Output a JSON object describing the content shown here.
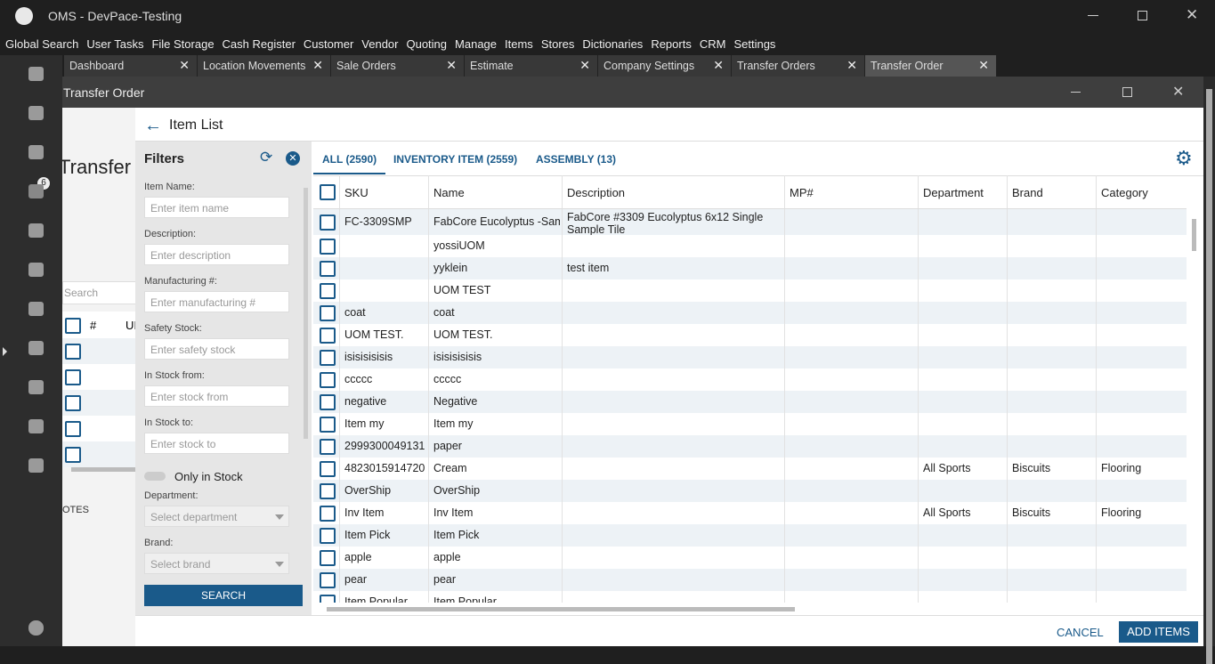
{
  "window": {
    "title": "OMS - DevPace-Testing"
  },
  "menu": [
    "Global Search",
    "User Tasks",
    "File Storage",
    "Cash Register",
    "Customer",
    "Vendor",
    "Quoting",
    "Manage",
    "Items",
    "Stores",
    "Dictionaries",
    "Reports",
    "CRM",
    "Settings"
  ],
  "sidebar": {
    "badge": "6"
  },
  "tabs": [
    "Dashboard",
    "Location Movements",
    "Sale Orders",
    "Estimate",
    "Company Settings",
    "Transfer Orders",
    "Transfer Order"
  ],
  "dialog": {
    "title": "Transfer Order"
  },
  "background": {
    "heading": "Transfer",
    "search": "Search",
    "col_hash": "#",
    "col_u": "UI",
    "notes": "OTES"
  },
  "item_list": {
    "title": "Item List",
    "filters": {
      "title": "Filters",
      "fields": [
        {
          "label": "Item Name:",
          "placeholder": "Enter item name"
        },
        {
          "label": "Description:",
          "placeholder": "Enter description"
        },
        {
          "label": "Manufacturing #:",
          "placeholder": "Enter manufacturing #"
        },
        {
          "label": "Safety Stock:",
          "placeholder": "Enter safety stock"
        },
        {
          "label": "In Stock from:",
          "placeholder": "Enter stock from"
        },
        {
          "label": "In Stock to:",
          "placeholder": "Enter stock to"
        }
      ],
      "toggle": "Only in Stock",
      "selects": [
        {
          "label": "Department:",
          "placeholder": "Select department"
        },
        {
          "label": "Brand:",
          "placeholder": "Select brand"
        }
      ],
      "button": "SEARCH"
    },
    "tabs": [
      "ALL (2590)",
      "INVENTORY ITEM (2559)",
      "ASSEMBLY (13)"
    ],
    "table": {
      "columns": [
        "SKU",
        "Name",
        "Description",
        "MP#",
        "Department",
        "Brand",
        "Category"
      ],
      "rows": [
        {
          "sku": "FC-3309SMP",
          "name": "FabCore Eucolyptus -Sample",
          "description": "FabCore #3309 Eucolyptus 6x12 Single Sample Tile"
        },
        {
          "name": "yossiUOM"
        },
        {
          "name": "yyklein",
          "description": "test item"
        },
        {
          "name": "UOM TEST"
        },
        {
          "sku": "coat",
          "name": "coat"
        },
        {
          "sku": "UOM TEST.",
          "name": "UOM TEST."
        },
        {
          "sku": "isisisisisis",
          "name": "isisisisisis"
        },
        {
          "sku": "ccccc",
          "name": "ccccc"
        },
        {
          "sku": "negative",
          "name": "Negative"
        },
        {
          "sku": "Item my",
          "name": "Item my"
        },
        {
          "sku": "2999300049131",
          "name": "paper"
        },
        {
          "sku": "4823015914720",
          "name": "Cream",
          "department": "All Sports",
          "brand": "Biscuits",
          "category": "Flooring"
        },
        {
          "sku": "OverShip",
          "name": "OverShip"
        },
        {
          "sku": "Inv Item",
          "name": "Inv Item",
          "department": "All Sports",
          "brand": "Biscuits",
          "category": "Flooring"
        },
        {
          "sku": "Item Pick",
          "name": "Item Pick"
        },
        {
          "sku": "apple",
          "name": "apple"
        },
        {
          "sku": "pear",
          "name": "pear"
        },
        {
          "sku": "Item Popular",
          "name": "Item Popular"
        }
      ]
    }
  },
  "footer": {
    "cancel": "CANCEL",
    "add": "ADD ITEMS"
  }
}
